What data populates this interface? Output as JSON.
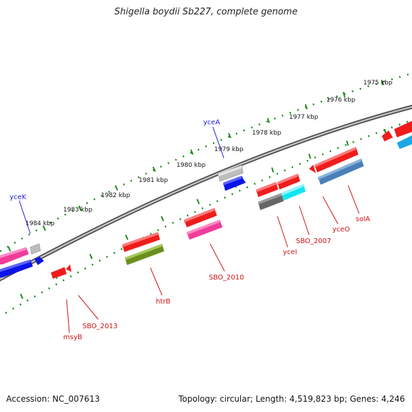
{
  "title": "Shigella boydii Sb227, complete genome",
  "footer": {
    "accession": "Accession: NC_007613",
    "topology": "Topology: circular; Length: 4,519,823 bp; Genes: 4,246"
  },
  "kbp_labels": [
    "1975 kbp",
    "1976 kbp",
    "1977 kbp",
    "1978 kbp",
    "1979 kbp",
    "1980 kbp",
    "1981 kbp",
    "1982 kbp",
    "1983 kbp",
    "1984 kbp"
  ],
  "gene_labels": {
    "top": [
      "yceA",
      "yceK"
    ],
    "bottom": [
      "solA",
      "yceO",
      "SBO_2007",
      "yceI",
      "SBO_2010",
      "htrB",
      "SBO_2013",
      "msyB"
    ]
  },
  "colors": {
    "backbone": "#8a8a8a",
    "tick": "#1a8a1a",
    "top_label": "#1a1ad6",
    "bottom_label": "#cc1111",
    "red": "#f01c1c",
    "pink": "#f03c9a",
    "blue": "#0a14e8",
    "gray": "#b8b8b8",
    "darkgray": "#666666",
    "cyan": "#12e6f2",
    "steel": "#4a7fb8",
    "olive": "#6b8f1e",
    "skyblue": "#1aa8e8"
  }
}
